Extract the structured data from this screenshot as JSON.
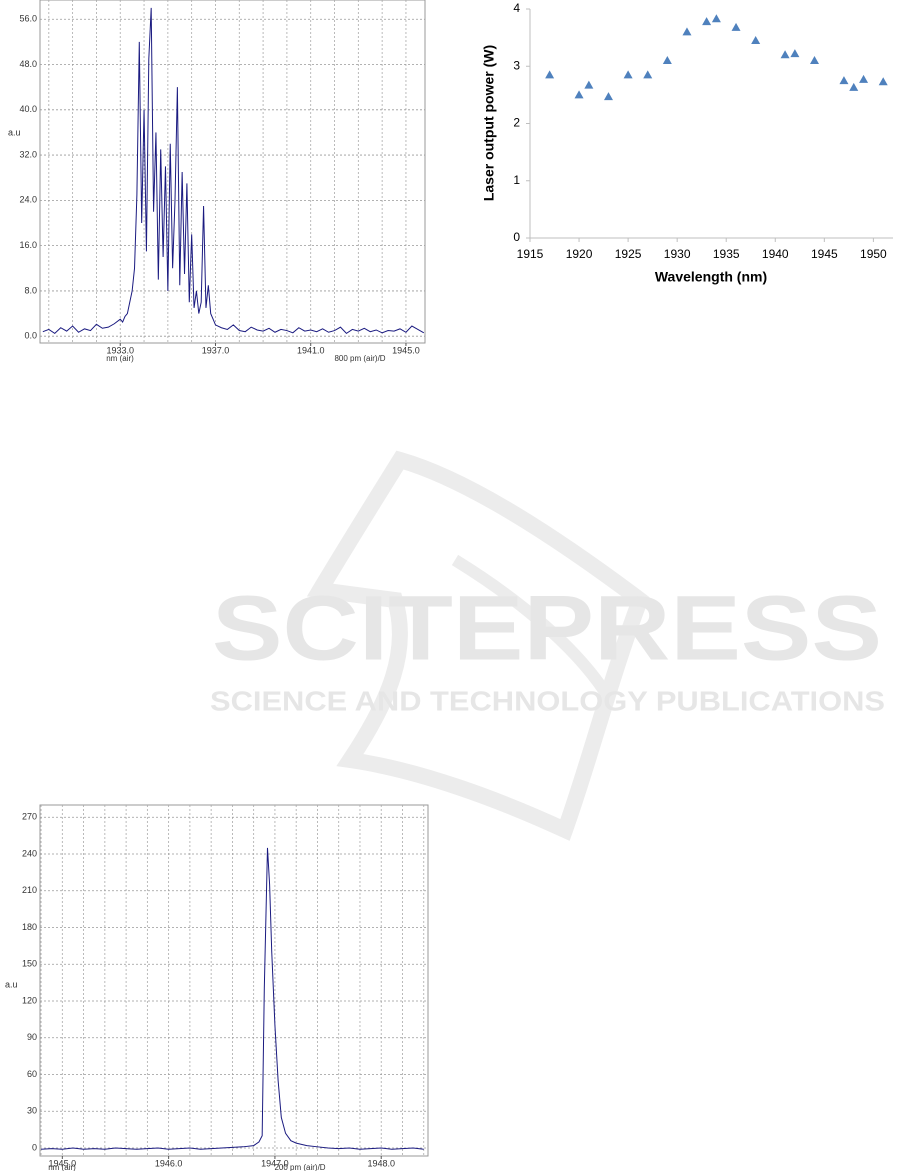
{
  "chart_data": [
    {
      "type": "line",
      "y_label": "a.u",
      "x_label": "nm (air)",
      "x_note": "800 pm (air)/D",
      "color": "#1a1a80",
      "x": [
        1929.75,
        1930.0,
        1930.25,
        1930.5,
        1930.75,
        1931.0,
        1931.25,
        1931.5,
        1931.75,
        1932.0,
        1932.25,
        1932.5,
        1932.75,
        1933.0,
        1933.1,
        1933.2,
        1933.3,
        1933.4,
        1933.5,
        1933.6,
        1933.7,
        1933.8,
        1933.9,
        1934.0,
        1934.1,
        1934.2,
        1934.3,
        1934.4,
        1934.5,
        1934.6,
        1934.7,
        1934.8,
        1934.9,
        1935.0,
        1935.1,
        1935.2,
        1935.3,
        1935.4,
        1935.5,
        1935.6,
        1935.7,
        1935.8,
        1935.9,
        1936.0,
        1936.1,
        1936.2,
        1936.3,
        1936.4,
        1936.5,
        1936.6,
        1936.7,
        1936.8,
        1936.9,
        1937.0,
        1937.25,
        1937.5,
        1937.75,
        1938.0,
        1938.25,
        1938.5,
        1938.75,
        1939.0,
        1939.25,
        1939.5,
        1939.75,
        1940.0,
        1940.25,
        1940.5,
        1940.75,
        1941.0,
        1941.25,
        1941.5,
        1941.75,
        1942.0,
        1942.25,
        1942.5,
        1942.75,
        1943.0,
        1943.25,
        1943.5,
        1943.75,
        1944.0,
        1944.25,
        1944.5,
        1944.75,
        1945.0,
        1945.25,
        1945.5,
        1945.75
      ],
      "values": [
        0.8,
        1.2,
        0.5,
        1.5,
        0.9,
        1.8,
        0.7,
        1.3,
        1.0,
        2.1,
        1.4,
        1.6,
        2.2,
        3.0,
        2.5,
        3.5,
        4,
        6,
        8,
        12,
        25,
        52,
        20,
        40,
        15,
        49,
        58,
        22,
        36,
        10,
        33,
        14,
        30,
        8,
        34,
        12,
        24,
        44,
        9,
        29,
        11,
        27,
        6,
        18,
        5,
        8,
        4,
        6,
        23,
        5,
        9,
        4,
        3,
        2,
        1.5,
        1.2,
        2.0,
        1.0,
        0.8,
        1.6,
        1.1,
        0.9,
        1.4,
        0.7,
        1.2,
        1.0,
        0.6,
        1.5,
        0.9,
        1.1,
        0.8,
        1.3,
        0.7,
        1.0,
        1.6,
        0.5,
        1.2,
        0.9,
        1.4,
        0.8,
        1.1,
        0.6,
        1.0,
        0.9,
        1.3,
        0.7,
        1.8,
        1.2,
        0.6
      ],
      "xlim": [
        1929.63,
        1945.8
      ],
      "ylim": [
        -1.2,
        59.4
      ],
      "xticks": [
        {
          "value": 1933,
          "label": "1933.0"
        },
        {
          "value": 1937,
          "label": "1937.0"
        },
        {
          "value": 1941,
          "label": "1941.0"
        },
        {
          "value": 1945,
          "label": "1945.0"
        }
      ],
      "yticks": [
        {
          "value": 0,
          "label": "0.0"
        },
        {
          "value": 8,
          "label": "8.0"
        },
        {
          "value": 16,
          "label": "16.0"
        },
        {
          "value": 24,
          "label": "24.0"
        },
        {
          "value": 32,
          "label": "32.0"
        },
        {
          "value": 40,
          "label": "40.0"
        },
        {
          "value": 48,
          "label": "48.0"
        },
        {
          "value": 56,
          "label": "56.0"
        }
      ],
      "xgrid": [
        1930,
        1931,
        1932,
        1933,
        1934,
        1935,
        1936,
        1937,
        1938,
        1939,
        1940,
        1941,
        1942,
        1943,
        1944,
        1945
      ],
      "grid": true
    },
    {
      "type": "scatter",
      "y_label": "Laser output power (W)",
      "x_label": "Wavelength (nm)",
      "color": "#4f81bd",
      "x": [
        1917,
        1920,
        1921,
        1923,
        1925,
        1927,
        1929,
        1931,
        1933,
        1934,
        1936,
        1938,
        1941,
        1942,
        1944,
        1947,
        1948,
        1949,
        1951
      ],
      "values": [
        2.85,
        2.5,
        2.67,
        2.47,
        2.85,
        2.85,
        3.1,
        3.6,
        3.78,
        3.83,
        3.68,
        3.45,
        3.2,
        3.22,
        3.1,
        2.75,
        2.63,
        2.77,
        2.73
      ],
      "xlim": [
        1915,
        1952
      ],
      "ylim": [
        0,
        4
      ],
      "xticks": [
        1915,
        1920,
        1925,
        1930,
        1935,
        1940,
        1945,
        1950
      ],
      "yticks": [
        0,
        1,
        2,
        3,
        4
      ],
      "grid": false
    },
    {
      "type": "line",
      "y_label": "a.u",
      "x_label": "nm (air)",
      "x_note": "200 pm (air)/D",
      "color": "#1a1a80",
      "x": [
        1944.8,
        1944.9,
        1945.0,
        1945.1,
        1945.2,
        1945.3,
        1945.4,
        1945.5,
        1945.6,
        1945.7,
        1945.8,
        1945.9,
        1946.0,
        1946.1,
        1946.2,
        1946.3,
        1946.4,
        1946.5,
        1946.6,
        1946.7,
        1946.8,
        1946.85,
        1946.88,
        1946.9,
        1946.93,
        1946.95,
        1946.97,
        1947.0,
        1947.03,
        1947.06,
        1947.1,
        1947.15,
        1947.2,
        1947.3,
        1947.4,
        1947.5,
        1947.6,
        1947.7,
        1947.8,
        1947.9,
        1948.0,
        1948.1,
        1948.2,
        1948.3,
        1948.4
      ],
      "values": [
        -1,
        -0.5,
        -1,
        0,
        -1,
        -0.5,
        -1,
        0,
        -0.5,
        -1,
        -0.5,
        0,
        -1,
        -0.5,
        0,
        -1,
        -0.5,
        0,
        0.5,
        1,
        2,
        5,
        10,
        130,
        245,
        215,
        160,
        100,
        55,
        25,
        12,
        6,
        4,
        2,
        1,
        0,
        -0.5,
        0,
        -1,
        -0.5,
        0,
        -1,
        -0.5,
        0,
        -1
      ],
      "xlim": [
        1944.79,
        1948.44
      ],
      "ylim": [
        -6.5,
        280
      ],
      "xticks": [
        {
          "value": 1945,
          "label": "1945.0"
        },
        {
          "value": 1946,
          "label": "1946.0"
        },
        {
          "value": 1947,
          "label": "1947.0"
        },
        {
          "value": 1948,
          "label": "1948.0"
        }
      ],
      "yticks": [
        0,
        30,
        60,
        90,
        120,
        150,
        180,
        210,
        240,
        270
      ],
      "xgrid": [
        1944.8,
        1945.0,
        1945.2,
        1945.4,
        1945.6,
        1945.8,
        1946.0,
        1946.2,
        1946.4,
        1946.6,
        1946.8,
        1947.0,
        1947.2,
        1947.4,
        1947.6,
        1947.8,
        1948.0,
        1948.2,
        1948.4
      ],
      "grid": true
    }
  ],
  "watermark": {
    "title": "SCITEPRESS",
    "subtitle": "SCIENCE AND TECHNOLOGY PUBLICATIONS"
  }
}
